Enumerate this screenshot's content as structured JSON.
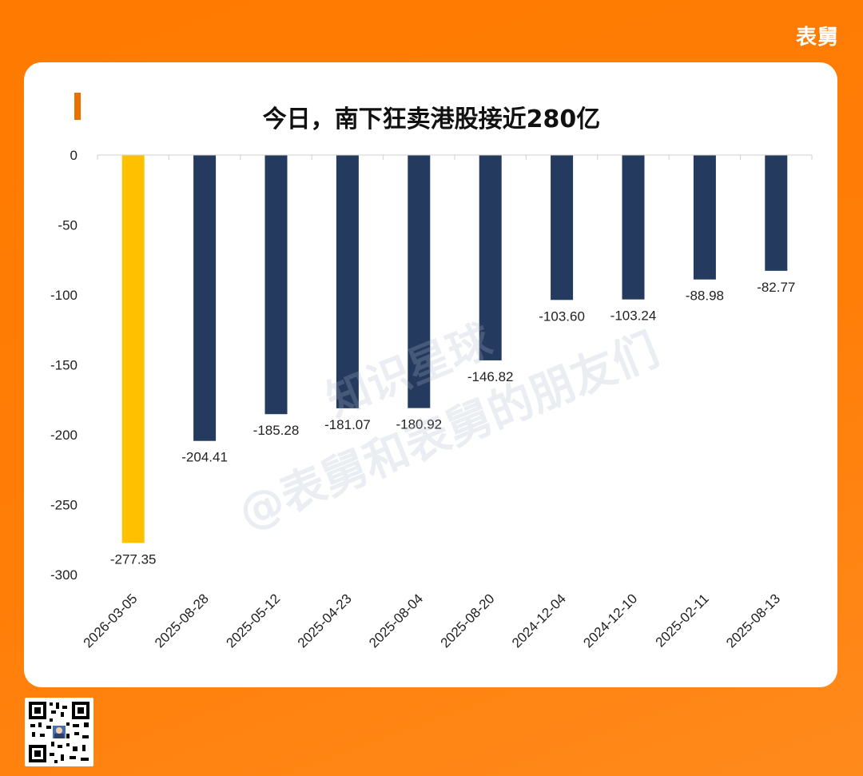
{
  "brand": "表舅",
  "title": "今日，南下狂卖港股接近280亿",
  "watermark": {
    "line1": "知识星球",
    "line2": "@表舅和表舅的朋友们"
  },
  "colors": {
    "background": "#ff7a00",
    "bar_highlight": "#ffc000",
    "bar_default": "#243a5e",
    "title_accent": "#e87000"
  },
  "chart_data": {
    "type": "bar",
    "title": "今日，南下狂卖港股接近280亿",
    "categories": [
      "2026-03-05",
      "2025-08-28",
      "2025-05-12",
      "2025-04-23",
      "2025-08-04",
      "2025-08-20",
      "2024-12-04",
      "2024-12-10",
      "2025-02-11",
      "2025-08-13"
    ],
    "values": [
      -277.35,
      -204.41,
      -185.28,
      -181.07,
      -180.92,
      -146.82,
      -103.6,
      -103.24,
      -88.98,
      -82.77
    ],
    "labels": [
      "-277.35",
      "-204.41",
      "-185.28",
      "-181.07",
      "-180.92",
      "-146.82",
      "-103.60",
      "-103.24",
      "-88.98",
      "-82.77"
    ],
    "highlight_index": 0,
    "yticks": [
      0,
      -50,
      -100,
      -150,
      -200,
      -250,
      -300
    ],
    "ylim": [
      -300,
      0
    ],
    "xlabel": "",
    "ylabel": "",
    "grid": false,
    "legend": "none"
  }
}
